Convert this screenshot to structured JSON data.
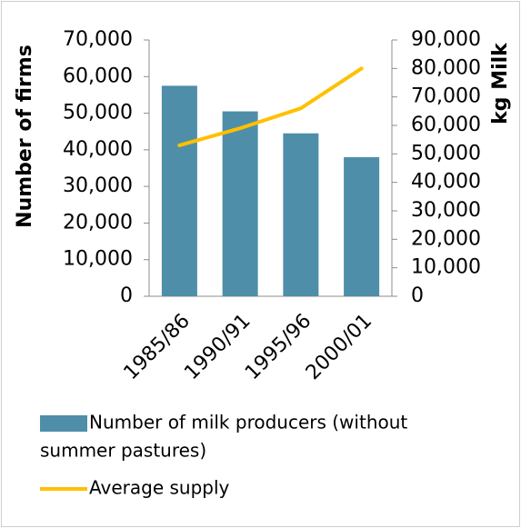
{
  "chart_data": {
    "type": "bar",
    "categories": [
      "1985/86",
      "1990/91",
      "1995/96",
      "2000/01"
    ],
    "series": [
      {
        "name": "Number of milk producers (without summer pastures)",
        "type": "bar",
        "axis": "left",
        "color": "#4f8ea8",
        "values": [
          57500,
          50500,
          44500,
          38000
        ]
      },
      {
        "name": "Average supply",
        "type": "line",
        "axis": "right",
        "color": "#ffc000",
        "values": [
          53000,
          59000,
          66000,
          80000
        ]
      }
    ],
    "y_left": {
      "label": "Number of firms",
      "range": [
        0,
        70000
      ],
      "ticks": [
        "0",
        "10,000",
        "20,000",
        "30,000",
        "40,000",
        "50,000",
        "60,000",
        "70,000"
      ]
    },
    "y_right": {
      "label": "kg Milk",
      "range": [
        0,
        90000
      ],
      "ticks": [
        "0",
        "10,000",
        "20,000",
        "30,000",
        "40,000",
        "50,000",
        "60,000",
        "70,000",
        "80,000",
        "90,000"
      ]
    },
    "legend": {
      "position": "bottom",
      "entries": [
        {
          "label_lines": [
            "Number of milk producers (without",
            "summer pastures)"
          ],
          "symbol": "bar",
          "color": "#4f8ea8"
        },
        {
          "label_lines": [
            "Average supply"
          ],
          "symbol": "line",
          "color": "#ffc000"
        }
      ]
    },
    "grid": false
  }
}
